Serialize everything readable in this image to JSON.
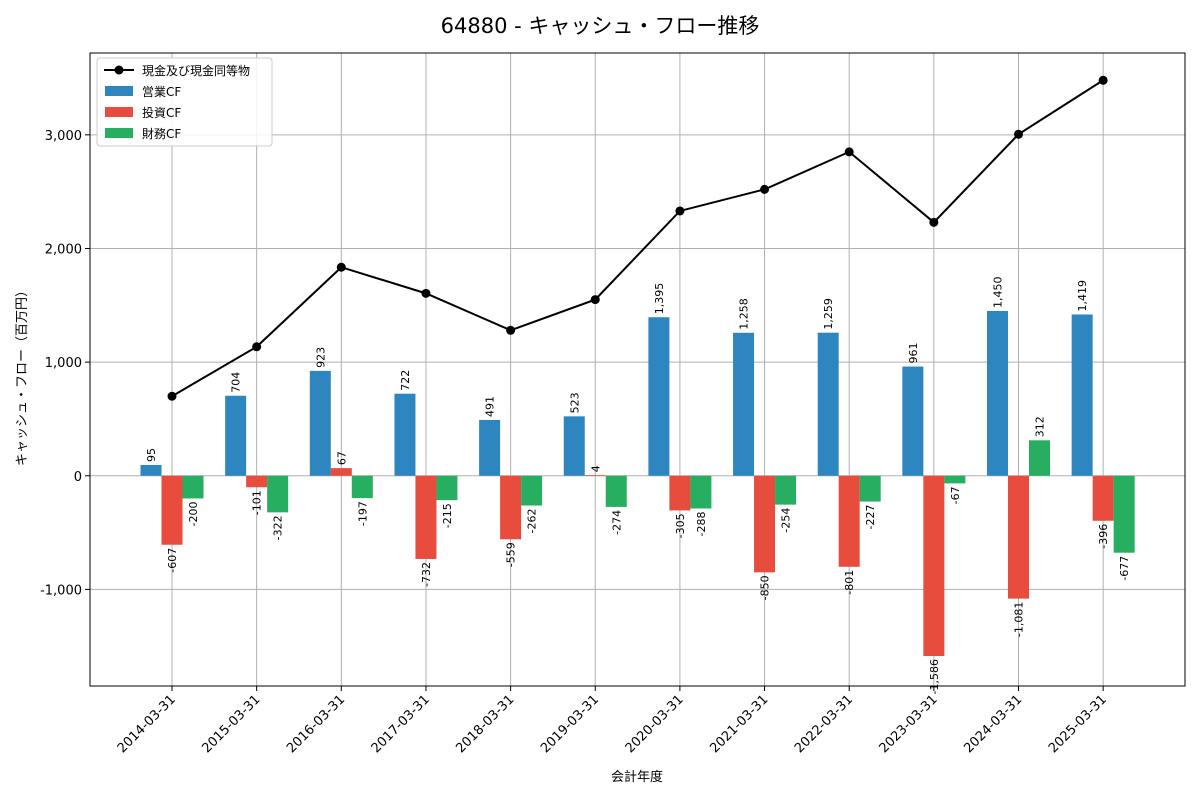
{
  "chart_data": {
    "type": "bar",
    "title": "64880 - キャッシュ・フロー推移",
    "xlabel": "会計年度",
    "ylabel": "キャッシュ・フロー（百万円）",
    "ylim": [
      -1850,
      3720
    ],
    "yticks": [
      -1000,
      0,
      1000,
      2000,
      3000
    ],
    "ytick_labels": [
      "-1,000",
      "0",
      "1,000",
      "2,000",
      "3,000"
    ],
    "grid": true,
    "legend_position": "top-left",
    "categories": [
      "2014-03-31",
      "2015-03-31",
      "2016-03-31",
      "2017-03-31",
      "2018-03-31",
      "2019-03-31",
      "2020-03-31",
      "2021-03-31",
      "2022-03-31",
      "2023-03-31",
      "2024-03-31",
      "2025-03-31"
    ],
    "series": [
      {
        "name": "営業CF",
        "kind": "bar",
        "color": "#2e86c1",
        "values": [
          95,
          704,
          923,
          722,
          491,
          523,
          1395,
          1258,
          1259,
          961,
          1450,
          1419
        ],
        "labels": [
          "95",
          "704",
          "923",
          "722",
          "491",
          "523",
          "1,395",
          "1,258",
          "1,259",
          "961",
          "1,450",
          "1,419"
        ]
      },
      {
        "name": "投資CF",
        "kind": "bar",
        "color": "#e74c3c",
        "values": [
          -607,
          -101,
          67,
          -732,
          -559,
          4,
          -305,
          -850,
          -801,
          -1586,
          -1081,
          -396
        ],
        "labels": [
          "-607",
          "-101",
          "67",
          "-732",
          "-559",
          "4",
          "-305",
          "-850",
          "-801",
          "-1,586",
          "-1,081",
          "-396"
        ]
      },
      {
        "name": "財務CF",
        "kind": "bar",
        "color": "#27ae60",
        "values": [
          -200,
          -322,
          -197,
          -215,
          -262,
          -274,
          -288,
          -254,
          -227,
          -67,
          312,
          -677
        ],
        "labels": [
          "-200",
          "-322",
          "-197",
          "-215",
          "-262",
          "-274",
          "-288",
          "-254",
          "-227",
          "-67",
          "312",
          "-677"
        ]
      },
      {
        "name": "現金及び現金同等物",
        "kind": "line",
        "color": "#000000",
        "values": [
          700,
          1135,
          1835,
          1605,
          1280,
          1550,
          2330,
          2520,
          2850,
          2230,
          3005,
          3480
        ]
      }
    ]
  }
}
